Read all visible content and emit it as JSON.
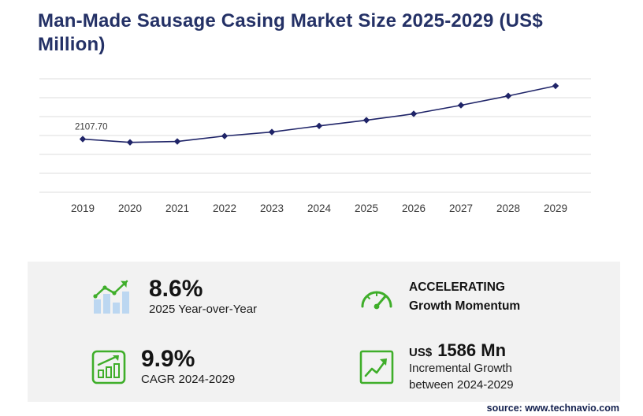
{
  "header": {
    "title": "Man-Made Sausage Casing Market Size 2025-2029 (US$ Million)"
  },
  "chart_data": {
    "type": "line",
    "title": "Man-Made Sausage Casing Market Size 2025-2029 (US$ Million)",
    "categories": [
      "2019",
      "2020",
      "2021",
      "2022",
      "2023",
      "2024",
      "2025",
      "2026",
      "2027",
      "2028",
      "2029"
    ],
    "values": [
      2107.7,
      1980,
      2015,
      2230,
      2390,
      2632,
      2858,
      3110,
      3450,
      3820,
      4218
    ],
    "first_point_label": "2107.70",
    "xlabel": "",
    "ylabel": "",
    "ylim": [
      0,
      4500
    ],
    "gridlines": 7,
    "grid_on": true,
    "legend": "none",
    "line_color": "#1f2468",
    "marker": "diamond",
    "grid_color": "#dcdcdc",
    "tick_color": "#3a3a3a"
  },
  "stats": {
    "yoy": {
      "value": "8.6%",
      "label": "2025 Year-over-Year",
      "icon": "bar-growth-icon"
    },
    "momentum": {
      "line1": "ACCELERATING",
      "line2": "Growth Momentum",
      "icon": "speedometer-icon"
    },
    "cagr": {
      "value": "9.9%",
      "label": "CAGR 2024-2029",
      "icon": "cagr-chart-icon"
    },
    "incremental": {
      "prefix": "US$",
      "value": "1586 Mn",
      "line1": "Incremental Growth",
      "line2": "between 2024-2029",
      "icon": "step-growth-icon"
    }
  },
  "footer": {
    "source": "source: www.technavio.com"
  },
  "colors": {
    "navy": "#243166",
    "accent_green": "#3fae2a",
    "bar_blue": "#bcd7f1",
    "panel_gray": "#f2f2f2"
  }
}
